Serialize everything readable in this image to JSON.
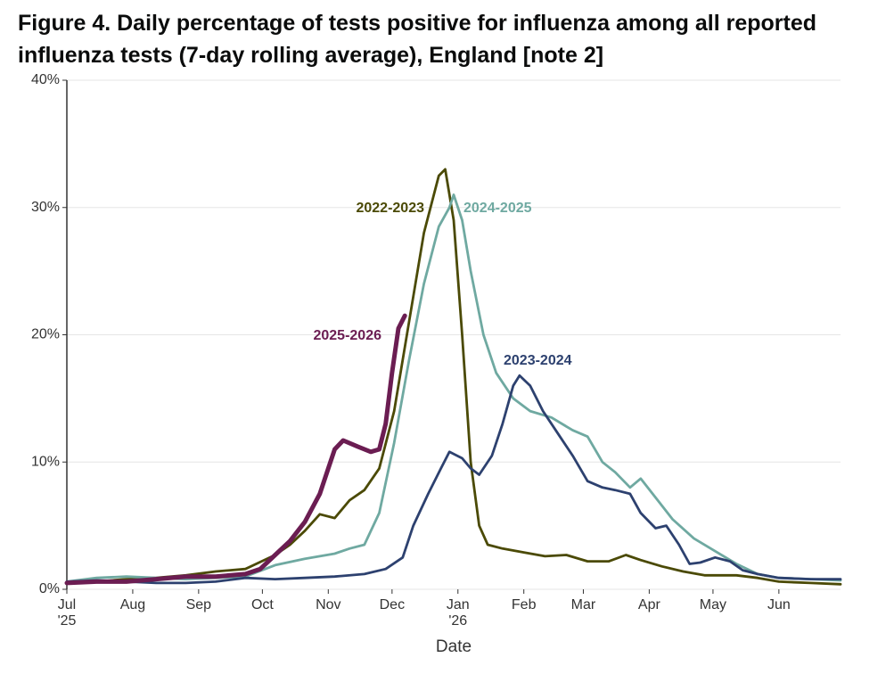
{
  "chart_data": {
    "type": "line",
    "title": "Figure 4. Daily percentage of tests positive for influenza among all reported influenza tests (7-day rolling average), England [note 2]",
    "x_label": "Date",
    "xlim": [
      0,
      364
    ],
    "xticks": [
      {
        "value": 0,
        "label": "Jul\n'25"
      },
      {
        "value": 31,
        "label": "Aug"
      },
      {
        "value": 62,
        "label": "Sep"
      },
      {
        "value": 92,
        "label": "Oct"
      },
      {
        "value": 123,
        "label": "Nov"
      },
      {
        "value": 153,
        "label": "Dec"
      },
      {
        "value": 184,
        "label": "Jan\n'26"
      },
      {
        "value": 215,
        "label": "Feb"
      },
      {
        "value": 243,
        "label": "Mar"
      },
      {
        "value": 274,
        "label": "Apr"
      },
      {
        "value": 304,
        "label": "May"
      },
      {
        "value": 335,
        "label": "Jun"
      }
    ],
    "ylim": [
      0,
      40
    ],
    "yticks": [
      {
        "value": 0,
        "label": "0%"
      },
      {
        "value": 10,
        "label": "10%"
      },
      {
        "value": 20,
        "label": "20%"
      },
      {
        "value": 30,
        "label": "30%"
      },
      {
        "value": 40,
        "label": "40%"
      }
    ],
    "grid": true,
    "series": [
      {
        "name": "2022-2023",
        "color": "#4b4a06",
        "x": [
          0,
          14,
          28,
          42,
          56,
          70,
          84,
          98,
          105,
          112,
          119,
          126,
          133,
          140,
          147,
          154,
          161,
          168,
          175,
          178,
          182,
          186,
          190,
          194,
          198,
          205,
          215,
          225,
          235,
          245,
          255,
          263,
          270,
          280,
          290,
          300,
          315,
          325,
          335,
          350,
          364
        ],
        "values": [
          0.5,
          0.6,
          0.8,
          0.9,
          1.1,
          1.4,
          1.6,
          2.7,
          3.5,
          4.6,
          5.9,
          5.6,
          7.0,
          7.8,
          9.5,
          14,
          21,
          28,
          32.5,
          33,
          29,
          20,
          10,
          5,
          3.5,
          3.2,
          2.9,
          2.6,
          2.7,
          2.2,
          2.2,
          2.7,
          2.3,
          1.8,
          1.4,
          1.1,
          1.1,
          0.9,
          0.6,
          0.5,
          0.4
        ]
      },
      {
        "name": "2024-2025",
        "color": "#6fa9a1",
        "x": [
          0,
          14,
          28,
          42,
          56,
          70,
          84,
          98,
          112,
          126,
          133,
          140,
          147,
          154,
          161,
          168,
          175,
          180,
          182,
          186,
          190,
          196,
          202,
          210,
          218,
          228,
          238,
          245,
          252,
          258,
          265,
          270,
          278,
          285,
          295,
          305,
          315,
          325,
          335,
          350,
          364
        ],
        "values": [
          0.6,
          0.9,
          1.0,
          0.9,
          0.8,
          0.9,
          1.0,
          1.9,
          2.4,
          2.8,
          3.2,
          3.5,
          6,
          11.5,
          18,
          24,
          28.5,
          30,
          31,
          29,
          25,
          20,
          17,
          15,
          14,
          13.5,
          12.5,
          12,
          10,
          9.2,
          8,
          8.7,
          7,
          5.5,
          4,
          3,
          2,
          1.2,
          0.9,
          0.8,
          0.7
        ]
      },
      {
        "name": "2023-2024",
        "color": "#2d416f",
        "x": [
          0,
          14,
          28,
          42,
          56,
          70,
          84,
          98,
          112,
          126,
          140,
          150,
          158,
          163,
          170,
          176,
          180,
          186,
          190,
          194,
          200,
          205,
          210,
          213,
          218,
          224,
          232,
          238,
          245,
          252,
          258,
          265,
          270,
          277,
          282,
          288,
          293,
          298,
          305,
          312,
          318,
          325,
          335,
          350,
          364
        ],
        "values": [
          0.6,
          0.7,
          0.6,
          0.5,
          0.5,
          0.6,
          0.9,
          0.8,
          0.9,
          1.0,
          1.2,
          1.6,
          2.5,
          5,
          7.5,
          9.5,
          10.8,
          10.3,
          9.5,
          9,
          10.5,
          13,
          16,
          16.8,
          16,
          14,
          12,
          10.5,
          8.5,
          8,
          7.8,
          7.5,
          6,
          4.8,
          5,
          3.5,
          2,
          2.1,
          2.5,
          2.2,
          1.5,
          1.2,
          0.9,
          0.8,
          0.8
        ]
      },
      {
        "name": "2025-2026",
        "color": "#6b1d52",
        "x": [
          0,
          14,
          28,
          42,
          56,
          70,
          84,
          91,
          98,
          105,
          112,
          119,
          123,
          126,
          130,
          137,
          143,
          147,
          150,
          153,
          156,
          159
        ],
        "values": [
          0.5,
          0.6,
          0.6,
          0.8,
          1.0,
          1.0,
          1.2,
          1.6,
          2.7,
          3.8,
          5.3,
          7.5,
          9.5,
          11,
          11.7,
          11.2,
          10.8,
          11,
          13,
          17,
          20.5,
          21.5
        ]
      }
    ]
  }
}
